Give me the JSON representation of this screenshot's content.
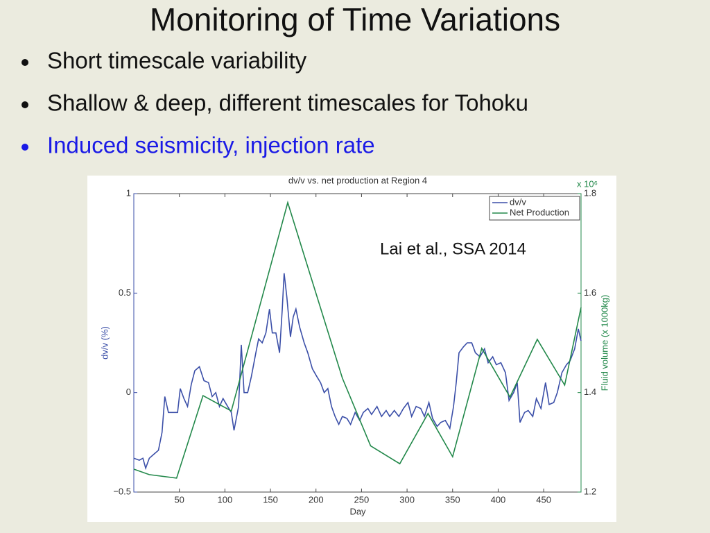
{
  "slide": {
    "title": "Monitoring of Time Variations",
    "bullets": [
      "Short timescale variability",
      "Shallow & deep, different timescales for Tohoku",
      "Induced seismicity, injection rate"
    ]
  },
  "chart_data": {
    "type": "line",
    "title": "dv/v vs. net production at Region 4",
    "xlabel": "Day",
    "ylabel": "dv/v (%)",
    "y2label": "Fluid volume (x 1000kg)",
    "y2_multiplier": "x 10⁶",
    "annotation": "Lai et al., SSA 2014",
    "legend": "top-right",
    "xlim": [
      0,
      491
    ],
    "xticks": [
      50,
      100,
      150,
      200,
      250,
      300,
      350,
      400,
      450
    ],
    "ylim": [
      -0.5,
      1
    ],
    "yticks": [
      {
        "value": -0.5,
        "label": "−0.5"
      },
      0,
      0.5,
      1
    ],
    "y2lim": [
      1.2,
      1.8
    ],
    "y2ticks": [
      1.2,
      1.4,
      1.6,
      1.8
    ],
    "series": [
      {
        "name": "dv/v",
        "color": "#3b4fa8",
        "x": [
          0,
          6,
          10,
          13,
          17,
          22,
          27,
          31,
          34,
          38,
          42,
          48,
          51,
          55,
          59,
          63,
          67,
          72,
          77,
          82,
          86,
          90,
          94,
          98,
          103,
          107,
          110,
          115,
          118,
          121,
          125,
          129,
          134,
          137,
          141,
          145,
          149,
          152,
          156,
          160,
          163,
          165,
          168,
          172,
          175,
          178,
          182,
          187,
          191,
          196,
          201,
          205,
          209,
          213,
          217,
          221,
          225,
          229,
          234,
          238,
          243,
          248,
          252,
          257,
          261,
          267,
          272,
          277,
          281,
          286,
          291,
          296,
          301,
          305,
          310,
          315,
          319,
          324,
          328,
          333,
          337,
          342,
          347,
          351,
          354,
          357,
          362,
          366,
          371,
          375,
          380,
          385,
          389,
          394,
          398,
          403,
          408,
          412,
          417,
          421,
          424,
          429,
          433,
          438,
          442,
          447,
          452,
          456,
          461,
          465,
          470,
          475,
          479,
          484,
          488,
          491
        ],
        "values": [
          -0.33,
          -0.34,
          -0.33,
          -0.38,
          -0.33,
          -0.31,
          -0.29,
          -0.2,
          -0.02,
          -0.1,
          -0.1,
          -0.1,
          0.02,
          -0.03,
          -0.07,
          0.04,
          0.11,
          0.13,
          0.06,
          0.05,
          -0.02,
          0,
          -0.07,
          -0.03,
          -0.07,
          -0.1,
          -0.19,
          -0.07,
          0.24,
          0,
          0,
          0.08,
          0.2,
          0.27,
          0.25,
          0.3,
          0.42,
          0.3,
          0.3,
          0.2,
          0.42,
          0.6,
          0.48,
          0.28,
          0.38,
          0.42,
          0.33,
          0.25,
          0.2,
          0.12,
          0.08,
          0.05,
          0,
          0.02,
          -0.07,
          -0.12,
          -0.16,
          -0.12,
          -0.13,
          -0.16,
          -0.1,
          -0.14,
          -0.1,
          -0.08,
          -0.11,
          -0.07,
          -0.12,
          -0.09,
          -0.12,
          -0.09,
          -0.12,
          -0.08,
          -0.05,
          -0.12,
          -0.07,
          -0.08,
          -0.12,
          -0.05,
          -0.13,
          -0.17,
          -0.15,
          -0.14,
          -0.18,
          -0.07,
          0.05,
          0.2,
          0.23,
          0.25,
          0.25,
          0.2,
          0.18,
          0.22,
          0.15,
          0.18,
          0.14,
          0.15,
          0.1,
          -0.04,
          0,
          0.05,
          -0.15,
          -0.1,
          -0.09,
          -0.12,
          -0.03,
          -0.08,
          0.05,
          -0.06,
          -0.05,
          0,
          0.1,
          0.14,
          0.16,
          0.22,
          0.32,
          0.26
        ]
      },
      {
        "name": "Net Production",
        "color": "#22884a",
        "axis": "y2",
        "x": [
          0,
          17,
          47,
          76,
          107,
          169,
          229,
          260,
          292,
          323,
          350,
          382,
          413,
          443,
          473,
          491
        ],
        "values": [
          1.246,
          1.235,
          1.228,
          1.394,
          1.363,
          1.782,
          1.429,
          1.293,
          1.257,
          1.358,
          1.271,
          1.489,
          1.391,
          1.507,
          1.415,
          1.571
        ]
      }
    ]
  }
}
